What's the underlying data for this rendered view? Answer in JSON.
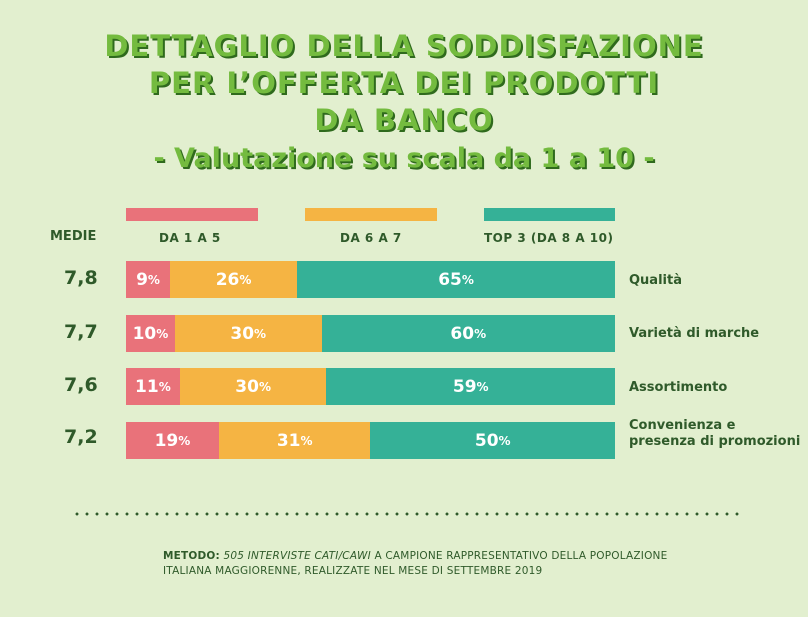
{
  "title_lines": [
    "DETTAGLIO DELLA SODDISFAZIONE",
    "PER L’OFFERTA DEI PRODOTTI",
    "DA BANCO"
  ],
  "subtitle": "- Valutazione su scala da 1 a 10 -",
  "medie_label": "MEDIE",
  "colors": {
    "low": "#e9727a",
    "mid": "#f5b443",
    "top": "#35b197",
    "text_dark": "#2f5a2a",
    "title": "#74bb3f",
    "background": "#e2efcf"
  },
  "chart_data": {
    "type": "bar",
    "stacked": true,
    "orientation": "horizontal",
    "title": "DETTAGLIO DELLA SODDISFAZIONE PER L’OFFERTA DEI PRODOTTI DA BANCO",
    "subtitle": "- Valutazione su scala da 1 a 10 -",
    "legend": [
      "DA 1 A 5",
      "DA 6 A 7",
      "TOP 3 (DA 8 A 10)"
    ],
    "legend_position": "top",
    "categories": [
      "Qualità",
      "Varietà di marche",
      "Assortimento",
      "Convenienza e presenza di promozioni"
    ],
    "averages": [
      "7,8",
      "7,7",
      "7,6",
      "7,2"
    ],
    "series": [
      {
        "name": "DA 1 A 5",
        "values": [
          9,
          10,
          11,
          19
        ]
      },
      {
        "name": "DA 6 A 7",
        "values": [
          26,
          30,
          30,
          31
        ]
      },
      {
        "name": "TOP 3 (DA 8 A 10)",
        "values": [
          65,
          60,
          59,
          50
        ]
      }
    ],
    "unit": "%",
    "xlim": [
      0,
      100
    ]
  },
  "footnote": {
    "label": "METODO:",
    "italic_part": "505 INTERVISTE CATI/CAWI",
    "rest_line1": "A CAMPIONE RAPPRESENTATIVO DELLA POPOLAZIONE",
    "line2": "ITALIANA MAGGIORENNE, REALIZZATE NEL MESE DI SETTEMBRE 2019"
  }
}
